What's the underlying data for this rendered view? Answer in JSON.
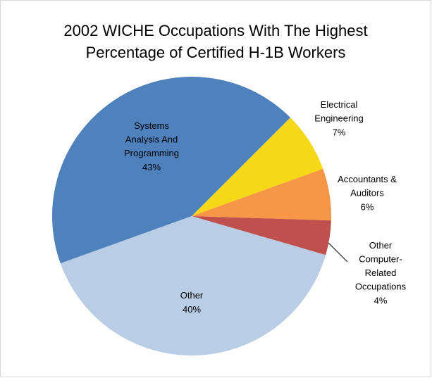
{
  "chart_data": {
    "type": "pie",
    "title": "2002 WICHE Occupations With The Highest Percentage of Certified H-1B Workers",
    "categories": [
      "Electrical Engineering",
      "Accountants & Auditors",
      "Other Computer-Related Occupations",
      "Other",
      "Systems Analysis And Programming"
    ],
    "values": [
      7,
      6,
      4,
      40,
      43
    ],
    "value_labels": [
      "7%",
      "6%",
      "4%",
      "40%",
      "43%"
    ],
    "colors": [
      "#f5d816",
      "#f79646",
      "#c0504d",
      "#b9cde5",
      "#4f81bd"
    ]
  }
}
